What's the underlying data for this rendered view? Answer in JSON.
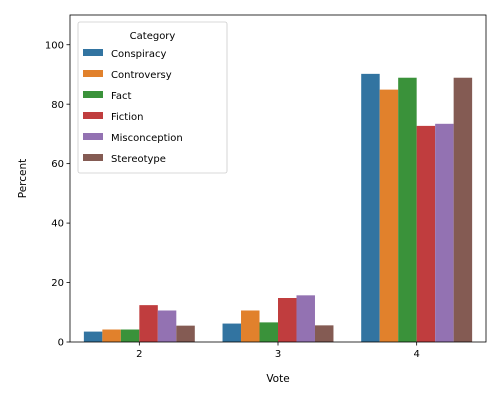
{
  "chart_data": {
    "type": "bar",
    "title": "",
    "xlabel": "Vote",
    "ylabel": "Percent",
    "categories": [
      "2",
      "3",
      "4"
    ],
    "ylim": [
      0,
      110
    ],
    "yticks": [
      0,
      20,
      40,
      60,
      80,
      100
    ],
    "grid": false,
    "legend": {
      "title": "Category",
      "position": "top-left"
    },
    "series": [
      {
        "name": "Conspiracy",
        "color": "#3274a1",
        "values": [
          3.5,
          6.2,
          90.2
        ]
      },
      {
        "name": "Controversy",
        "color": "#e1812c",
        "values": [
          4.2,
          10.6,
          84.9
        ]
      },
      {
        "name": "Fact",
        "color": "#3a923a",
        "values": [
          4.2,
          6.6,
          88.9
        ]
      },
      {
        "name": "Fiction",
        "color": "#c03d3e",
        "values": [
          12.4,
          14.8,
          72.7
        ]
      },
      {
        "name": "Misconception",
        "color": "#9372b2",
        "values": [
          10.6,
          15.7,
          73.4
        ]
      },
      {
        "name": "Stereotype",
        "color": "#845b53",
        "values": [
          5.5,
          5.6,
          88.9
        ]
      }
    ]
  }
}
